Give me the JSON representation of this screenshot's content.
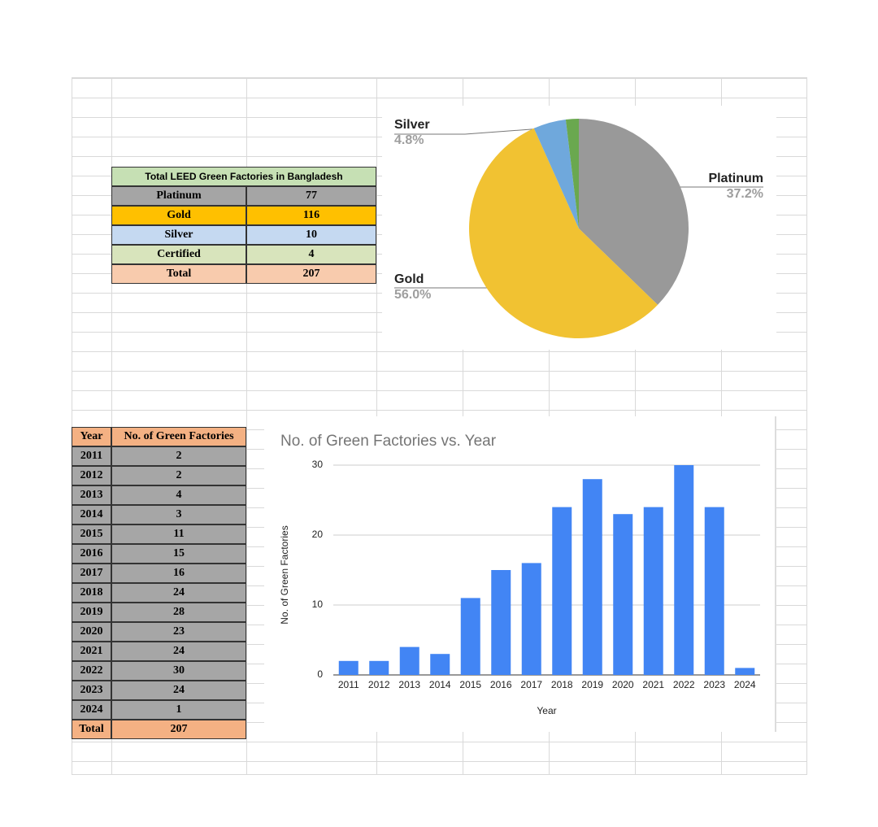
{
  "tables": [
    {
      "title": "Total LEED Green Factories in Bangladesh",
      "rows": [
        [
          "Platinum",
          77
        ],
        [
          "Gold",
          116
        ],
        [
          "Silver",
          10
        ],
        [
          "Certified",
          4
        ],
        [
          "Total",
          207
        ]
      ],
      "row_colors": [
        "#a5a5a5",
        "#ffc000",
        "#c5d9f1",
        "#d8e4bc",
        "#f8cbad"
      ],
      "title_color": "#c6e0b4"
    },
    {
      "header": [
        "Year",
        "No. of Green Factories"
      ],
      "rows": [
        [
          2011,
          2
        ],
        [
          2012,
          2
        ],
        [
          2013,
          4
        ],
        [
          2014,
          3
        ],
        [
          2015,
          11
        ],
        [
          2016,
          15
        ],
        [
          2017,
          16
        ],
        [
          2018,
          24
        ],
        [
          2019,
          28
        ],
        [
          2020,
          23
        ],
        [
          2021,
          24
        ],
        [
          2022,
          30
        ],
        [
          2023,
          24
        ],
        [
          2024,
          1
        ],
        [
          "Total",
          207
        ]
      ],
      "header_color": "#f4b183",
      "row_color": "#a6a6a6",
      "total_color": "#f4b183"
    }
  ],
  "chart_data": [
    {
      "type": "pie",
      "categories": [
        "Platinum",
        "Gold",
        "Silver",
        null
      ],
      "values": [
        37.2,
        56.0,
        4.8,
        1.9
      ],
      "value_labels": [
        "37.2%",
        "56.0%",
        "4.8%",
        null
      ],
      "colors": [
        "#999999",
        "#f1c232",
        "#6fa8dc",
        "#6aa84f"
      ]
    },
    {
      "type": "bar",
      "title": "No. of Green Factories vs. Year",
      "x_label": "Year",
      "y_label": "No. of Green Factories",
      "categories": [
        "2011",
        "2012",
        "2013",
        "2014",
        "2015",
        "2016",
        "2017",
        "2018",
        "2019",
        "2020",
        "2021",
        "2022",
        "2023",
        "2024"
      ],
      "values": [
        2,
        2,
        4,
        3,
        11,
        15,
        16,
        24,
        28,
        23,
        24,
        30,
        24,
        1
      ],
      "color": "#4285f4",
      "ylim": [
        0,
        30
      ],
      "yticks": [
        0,
        10,
        20,
        30
      ],
      "grid": true
    }
  ]
}
